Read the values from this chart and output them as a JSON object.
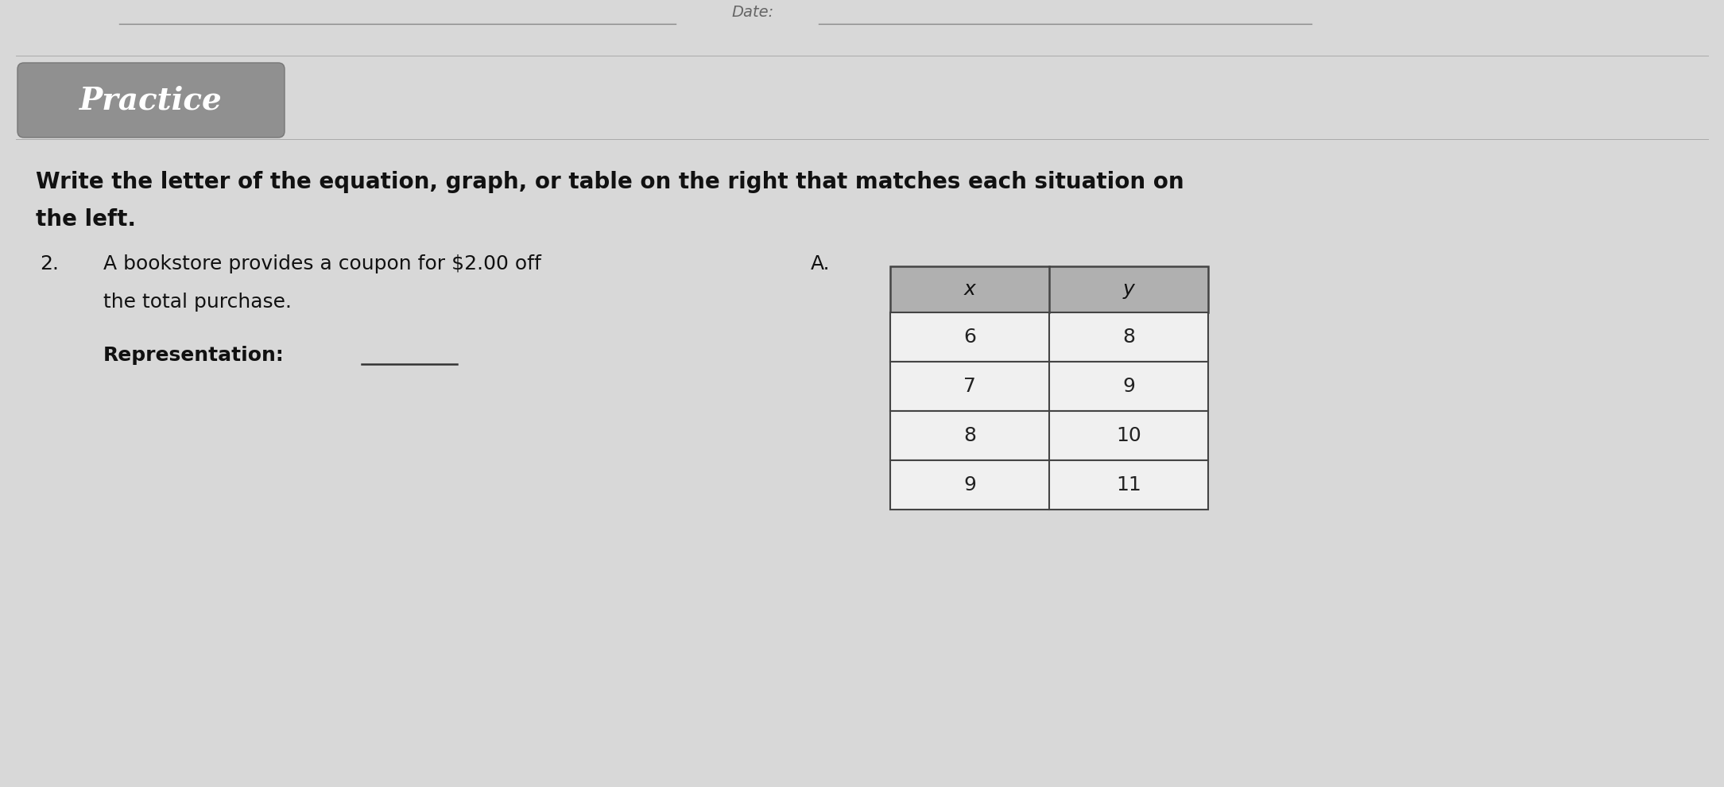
{
  "background_color": "#d8d8d8",
  "date_label": "Date:",
  "practice_label": "Practice",
  "practice_box_color": "#909090",
  "instruction_line1": "Write the letter of the equation, graph, or table on the right that matches each situation on",
  "instruction_line2": "the left.",
  "item_number": "2.",
  "item_text_line1": "A bookstore provides a coupon for $2.00 off",
  "item_text_line2": "the total purchase.",
  "representation_label": "Representation:",
  "option_letter": "A.",
  "table_header_x": "x",
  "table_header_y": "y",
  "table_data": [
    [
      6,
      8
    ],
    [
      7,
      9
    ],
    [
      8,
      10
    ],
    [
      9,
      11
    ]
  ],
  "table_header_bg": "#b0b0b0",
  "table_bg": "#f0f0f0",
  "table_border_color": "#444444",
  "fig_width": 21.69,
  "fig_height": 9.9,
  "dpi": 100
}
